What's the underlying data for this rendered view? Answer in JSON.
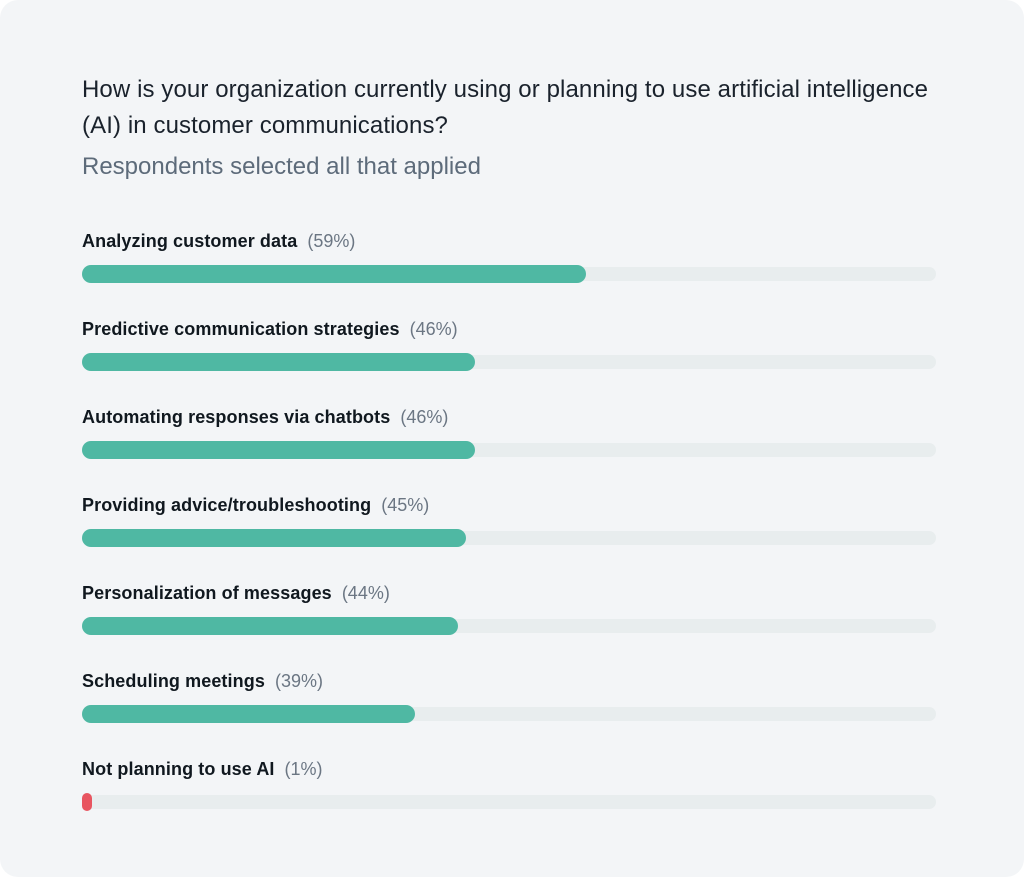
{
  "chart_data": {
    "type": "bar",
    "orientation": "horizontal",
    "title": "How is your organization currently using or planning to use artificial intelligence (AI) in customer communications?",
    "subtitle": "Respondents selected all that applied",
    "value_range": [
      0,
      100
    ],
    "value_unit": "%",
    "grid": false,
    "legend": false,
    "colors": {
      "positive_bar": "#4FB8A3",
      "negative_bar": "#E85560",
      "track": "#E8EDEE",
      "background": "#F3F5F7"
    },
    "categories": [
      "Analyzing customer data",
      "Predictive communication strategies",
      "Automating responses via chatbots",
      "Providing advice/troubleshooting",
      "Personalization of messages",
      "Scheduling meetings",
      "Not planning to use AI"
    ],
    "values": [
      59,
      46,
      46,
      45,
      44,
      39,
      1
    ],
    "items": [
      {
        "label": "Analyzing customer data",
        "value": 59,
        "percent_label": "(59%)",
        "bar_color": "#4FB8A3"
      },
      {
        "label": "Predictive communication strategies",
        "value": 46,
        "percent_label": "(46%)",
        "bar_color": "#4FB8A3"
      },
      {
        "label": "Automating responses via chatbots",
        "value": 46,
        "percent_label": "(46%)",
        "bar_color": "#4FB8A3"
      },
      {
        "label": "Providing advice/troubleshooting",
        "value": 45,
        "percent_label": "(45%)",
        "bar_color": "#4FB8A3"
      },
      {
        "label": "Personalization of messages",
        "value": 44,
        "percent_label": "(44%)",
        "bar_color": "#4FB8A3"
      },
      {
        "label": "Scheduling meetings",
        "value": 39,
        "percent_label": "(39%)",
        "bar_color": "#4FB8A3"
      },
      {
        "label": "Not planning to use AI",
        "value": 1,
        "percent_label": "(1%)",
        "bar_color": "#E85560"
      }
    ]
  }
}
